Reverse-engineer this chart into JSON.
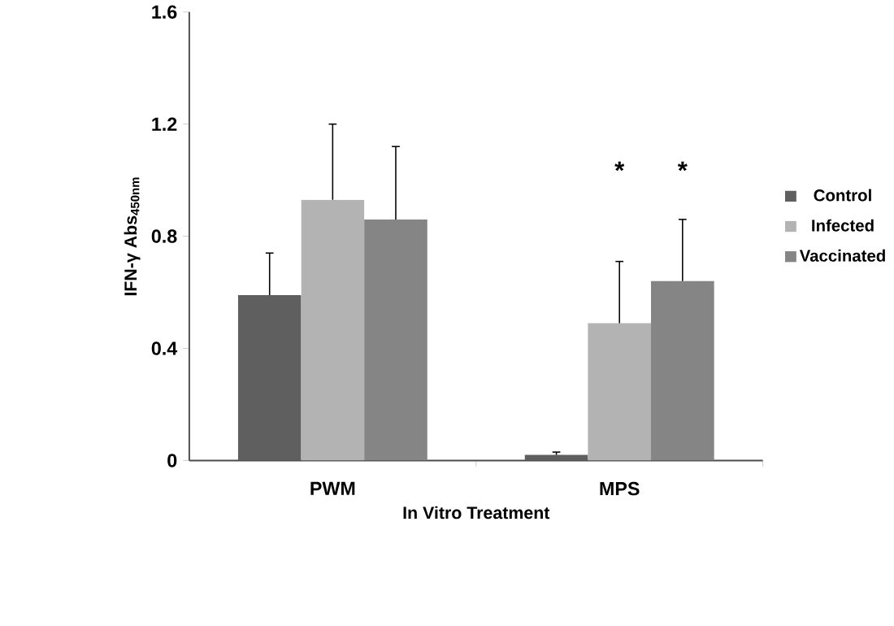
{
  "chart_data": {
    "type": "bar",
    "xlabel": "In Vitro Treatment",
    "ylabel": "IFN-γ Abs$_{450nm}$",
    "categories": [
      "PWM",
      "MPS"
    ],
    "series": [
      {
        "name": "Control",
        "color": "#5f5f5f",
        "values": [
          0.59,
          0.02
        ],
        "errors": [
          [
            0.59,
            0.74
          ],
          [
            0.02,
            0.03
          ]
        ]
      },
      {
        "name": "Infected",
        "color": "#b3b3b3",
        "values": [
          0.93,
          0.49
        ],
        "errors": [
          [
            0.93,
            1.2
          ],
          [
            0.49,
            0.71
          ]
        ]
      },
      {
        "name": "Vaccinated",
        "color": "#858585",
        "values": [
          0.86,
          0.64
        ],
        "errors": [
          [
            0.86,
            1.12
          ],
          [
            0.64,
            0.86
          ]
        ]
      }
    ],
    "ylim": [
      0,
      1.6
    ],
    "yticks": [
      0,
      0.4,
      0.8,
      1.2,
      1.6
    ],
    "legend": "right",
    "annotations": [
      "*",
      "*"
    ]
  }
}
